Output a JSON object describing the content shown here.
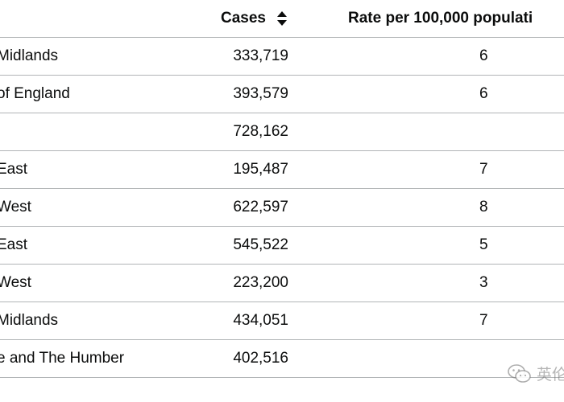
{
  "table": {
    "headers": {
      "area": "",
      "cases": "Cases",
      "rate": "Rate per 100,000 populati"
    },
    "sort_icon": "sort-up-down-icon",
    "rows": [
      {
        "area": "Midlands",
        "cases": "333,719",
        "rate": "6"
      },
      {
        "area": "of England",
        "cases": "393,579",
        "rate": "6"
      },
      {
        "area": "",
        "cases": "728,162",
        "rate": ""
      },
      {
        "area": "East",
        "cases": "195,487",
        "rate": "7"
      },
      {
        "area": "West",
        "cases": "622,597",
        "rate": "8"
      },
      {
        "area": "East",
        "cases": "545,522",
        "rate": "5"
      },
      {
        "area": "West",
        "cases": "223,200",
        "rate": "3"
      },
      {
        "area": "Midlands",
        "cases": "434,051",
        "rate": "7"
      },
      {
        "area": "e and The Humber",
        "cases": "402,516",
        "rate": ""
      }
    ]
  },
  "watermark": {
    "icon": "wechat-icon",
    "text": "英伦"
  }
}
